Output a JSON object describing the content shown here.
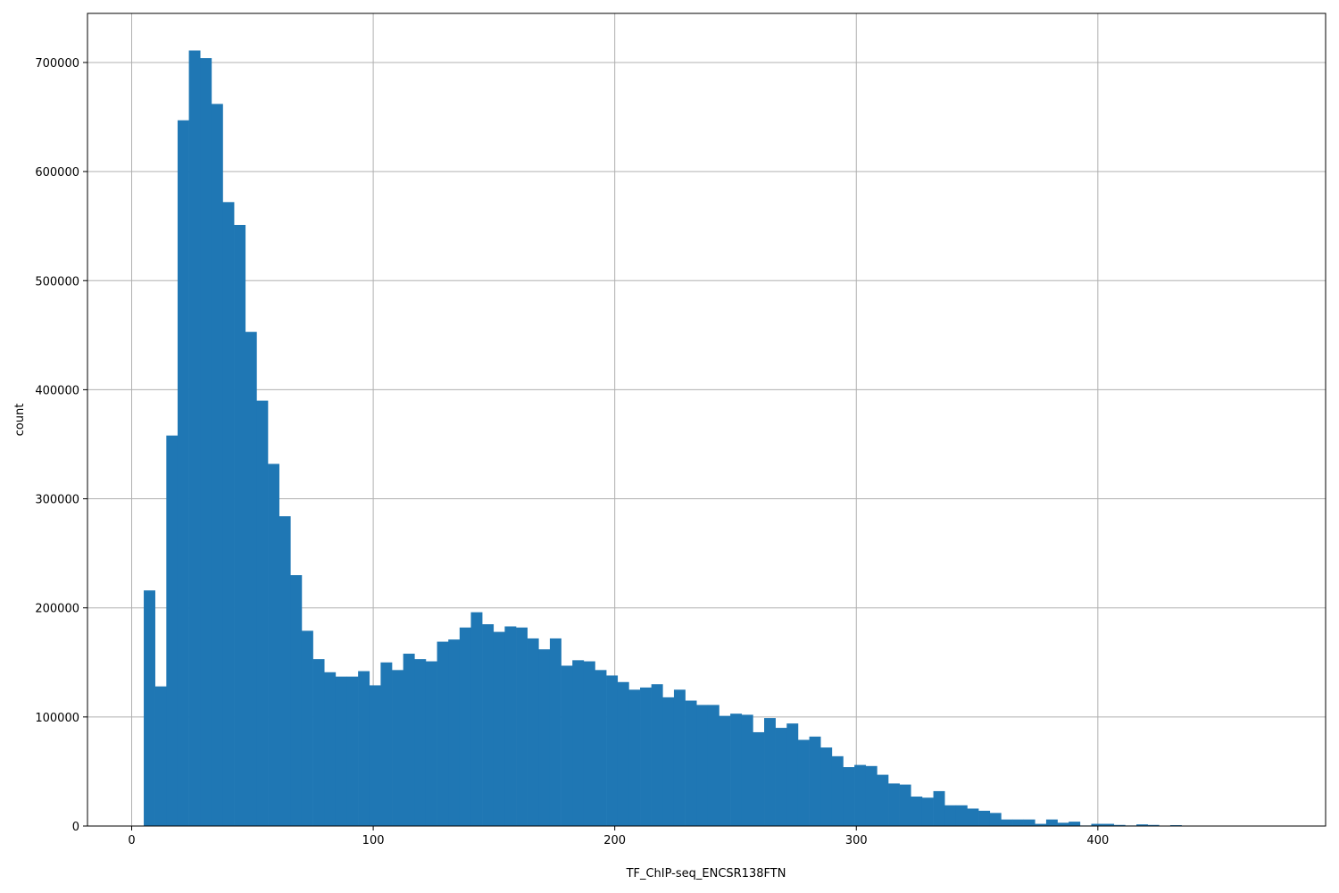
{
  "chart_data": {
    "type": "bar",
    "subtype": "histogram",
    "title": "",
    "xlabel": "TF_ChIP-seq_ENCSR138FTN",
    "ylabel": "count",
    "xlim": [
      -18.3,
      494.3
    ],
    "ylim": [
      0,
      745000
    ],
    "x_ticks": [
      0,
      100,
      200,
      300,
      400
    ],
    "y_ticks": [
      0,
      100000,
      200000,
      300000,
      400000,
      500000,
      600000,
      700000
    ],
    "grid": true,
    "color": "#1f77b4",
    "bin_start": 5,
    "bin_width": 4.67,
    "values": [
      216000,
      128000,
      358000,
      647000,
      711000,
      704000,
      662000,
      572000,
      551000,
      453000,
      390000,
      332000,
      284000,
      230000,
      179000,
      153000,
      141000,
      137000,
      137000,
      142000,
      129000,
      150000,
      143000,
      158000,
      153000,
      151000,
      169000,
      171000,
      182000,
      196000,
      185000,
      178000,
      183000,
      182000,
      172000,
      162000,
      172000,
      147000,
      152000,
      151000,
      143000,
      138000,
      132000,
      125000,
      127000,
      130000,
      118000,
      125000,
      115000,
      111000,
      111000,
      101000,
      103000,
      102000,
      86000,
      99000,
      90000,
      94000,
      79000,
      82000,
      72000,
      64000,
      54000,
      56000,
      55000,
      47000,
      39000,
      38000,
      27000,
      26000,
      32000,
      19000,
      19000,
      16000,
      14000,
      12000,
      6000,
      6000,
      6000,
      2000,
      6000,
      3000,
      4000,
      500,
      2000,
      2000,
      1000,
      500,
      1500,
      1000,
      300,
      800,
      300,
      200,
      200,
      100,
      100,
      100,
      100,
      100
    ]
  }
}
